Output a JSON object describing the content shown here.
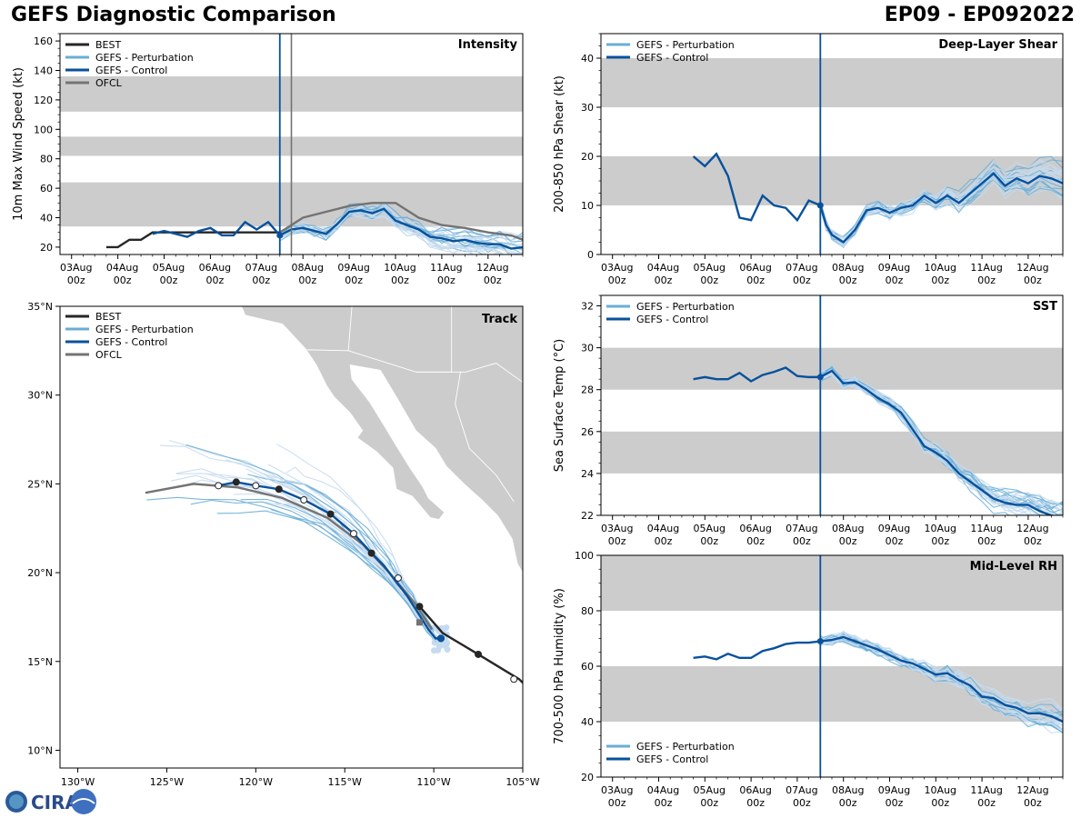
{
  "header": {
    "title_left": "GEFS Diagnostic Comparison",
    "title_right": "EP09 - EP092022"
  },
  "logo": {
    "text": "CIRA"
  },
  "colors": {
    "best": "#262626",
    "perturbation": "#6aaed6",
    "perturbation_light": "#c6dbef",
    "control": "#08519c",
    "ofcl": "#737373",
    "band": "#cccccc",
    "land": "#cccccc"
  },
  "time_axis": {
    "ticks": [
      {
        "t": 0,
        "l1": "03Aug",
        "l2": "00z"
      },
      {
        "t": 1,
        "l1": "04Aug",
        "l2": "00z"
      },
      {
        "t": 2,
        "l1": "05Aug",
        "l2": "00z"
      },
      {
        "t": 3,
        "l1": "06Aug",
        "l2": "00z"
      },
      {
        "t": 4,
        "l1": "07Aug",
        "l2": "00z"
      },
      {
        "t": 5,
        "l1": "08Aug",
        "l2": "00z"
      },
      {
        "t": 6,
        "l1": "09Aug",
        "l2": "00z"
      },
      {
        "t": 7,
        "l1": "10Aug",
        "l2": "00z"
      },
      {
        "t": 8,
        "l1": "11Aug",
        "l2": "00z"
      },
      {
        "t": 9,
        "l1": "12Aug",
        "l2": "00z"
      }
    ],
    "range": [
      -0.25,
      9.75
    ],
    "init_time": 4.5
  },
  "chart_data": [
    {
      "id": "intensity",
      "type": "line",
      "title": "Intensity",
      "ylabel": "10m Max Wind Speed (kt)",
      "ylim": [
        15,
        165
      ],
      "yticks": [
        20,
        40,
        60,
        80,
        100,
        120,
        140,
        160
      ],
      "bands": [
        [
          34,
          64
        ],
        [
          82,
          95
        ],
        [
          112,
          136
        ]
      ],
      "legend": [
        "BEST",
        "GEFS - Perturbation",
        "GEFS - Control",
        "OFCL"
      ],
      "ofcl_line_time": 4.75,
      "series": {
        "best": {
          "x": [
            0.75,
            1.0,
            1.25,
            1.5,
            1.75,
            2.0,
            2.5,
            3.0,
            3.5,
            4.0,
            4.25,
            4.5
          ],
          "y": [
            20,
            20,
            25,
            25,
            30,
            30,
            30,
            30,
            30,
            30,
            30,
            30
          ]
        },
        "control": {
          "x": [
            1.75,
            2.0,
            2.25,
            2.5,
            2.75,
            3.0,
            3.25,
            3.5,
            3.75,
            4.0,
            4.25,
            4.5,
            4.75,
            5.0,
            5.25,
            5.5,
            5.75,
            6.0,
            6.25,
            6.5,
            6.75,
            7.0,
            7.25,
            7.5,
            7.75,
            8.0,
            8.25,
            8.5,
            8.75,
            9.0,
            9.25,
            9.5,
            9.75
          ],
          "y": [
            29,
            31,
            29,
            27,
            31,
            33,
            28,
            28,
            37,
            32,
            37,
            28,
            32,
            33,
            31,
            29,
            36,
            44,
            45,
            43,
            46,
            38,
            35,
            32,
            27,
            26,
            24,
            25,
            23,
            22,
            22,
            19,
            20
          ]
        },
        "ofcl": {
          "x": [
            4.5,
            4.75,
            5.0,
            5.5,
            6.0,
            6.5,
            7.0,
            7.5,
            8.0,
            8.5,
            9.0,
            9.5,
            9.75
          ],
          "y": [
            30,
            35,
            40,
            44,
            48,
            50,
            50,
            40,
            35,
            33,
            30,
            28,
            25
          ]
        },
        "init_value": 28
      }
    },
    {
      "id": "shear",
      "type": "line",
      "title": "Deep-Layer Shear",
      "ylabel": "200-850 hPa Shear (kt)",
      "ylim": [
        0,
        45
      ],
      "yticks": [
        0,
        10,
        20,
        30,
        40
      ],
      "bands": [
        [
          10,
          20
        ],
        [
          30,
          40
        ]
      ],
      "legend": [
        "GEFS - Perturbation",
        "GEFS - Control"
      ],
      "series": {
        "control": {
          "x": [
            1.75,
            2.0,
            2.25,
            2.5,
            2.75,
            3.0,
            3.25,
            3.5,
            3.75,
            4.0,
            4.25,
            4.5,
            4.625,
            4.75,
            5.0,
            5.25,
            5.5,
            5.75,
            6.0,
            6.25,
            6.5,
            6.75,
            7.0,
            7.25,
            7.5,
            7.75,
            8.0,
            8.25,
            8.5,
            8.75,
            9.0,
            9.25,
            9.5,
            9.75
          ],
          "y": [
            20,
            18,
            20.5,
            16,
            7.5,
            7,
            12,
            10,
            9.5,
            7,
            11,
            10,
            6,
            4,
            2.5,
            5,
            9,
            9.5,
            8.5,
            9.5,
            10,
            12,
            10.5,
            12,
            10.5,
            12.5,
            14.5,
            16.5,
            14,
            15.5,
            14.5,
            16,
            15.5,
            14.5
          ]
        },
        "init_value": 10
      }
    },
    {
      "id": "sst",
      "type": "line",
      "title": "SST",
      "ylabel": "Sea Surface Temp (°C)",
      "ylim": [
        22,
        32.5
      ],
      "yticks": [
        22,
        24,
        26,
        28,
        30,
        32
      ],
      "bands": [
        [
          24,
          26
        ],
        [
          28,
          30
        ]
      ],
      "legend": [
        "GEFS - Perturbation",
        "GEFS - Control"
      ],
      "series": {
        "control": {
          "x": [
            1.75,
            2.0,
            2.25,
            2.5,
            2.75,
            3.0,
            3.25,
            3.5,
            3.75,
            4.0,
            4.25,
            4.5,
            4.75,
            5.0,
            5.25,
            5.5,
            5.75,
            6.0,
            6.25,
            6.5,
            6.75,
            7.0,
            7.25,
            7.5,
            7.75,
            8.0,
            8.25,
            8.5,
            8.75,
            9.0,
            9.25,
            9.5,
            9.75
          ],
          "y": [
            28.5,
            28.6,
            28.5,
            28.5,
            28.8,
            28.4,
            28.7,
            28.85,
            29.05,
            28.65,
            28.6,
            28.6,
            28.9,
            28.3,
            28.35,
            28.0,
            27.6,
            27.3,
            26.9,
            26.1,
            25.3,
            25.0,
            24.6,
            24.0,
            23.6,
            23.2,
            22.8,
            22.6,
            22.5,
            22.5,
            22.2,
            22.0,
            21.9
          ]
        },
        "init_value": 28.6
      }
    },
    {
      "id": "rh",
      "type": "line",
      "title": "Mid-Level RH",
      "ylabel": "700-500 hPa Humidity (%)",
      "ylim": [
        20,
        100
      ],
      "yticks": [
        20,
        40,
        60,
        80,
        100
      ],
      "bands": [
        [
          40,
          60
        ],
        [
          80,
          100
        ]
      ],
      "legend": [
        "GEFS - Perturbation",
        "GEFS - Control"
      ],
      "series": {
        "control": {
          "x": [
            1.75,
            2.0,
            2.25,
            2.5,
            2.75,
            3.0,
            3.25,
            3.5,
            3.75,
            4.0,
            4.25,
            4.5,
            4.75,
            5.0,
            5.25,
            5.5,
            5.75,
            6.0,
            6.25,
            6.5,
            6.75,
            7.0,
            7.25,
            7.5,
            7.75,
            8.0,
            8.25,
            8.5,
            8.75,
            9.0,
            9.25,
            9.5,
            9.75
          ],
          "y": [
            63,
            63.5,
            62.5,
            64.5,
            63,
            63,
            65.5,
            66.5,
            68,
            68.5,
            68.5,
            69,
            69.5,
            70.5,
            69,
            67.5,
            66,
            64,
            62,
            61,
            59,
            57,
            57.5,
            55,
            53,
            49,
            48.5,
            46,
            45,
            43,
            43,
            42,
            40
          ]
        },
        "init_value": 69
      }
    },
    {
      "id": "track",
      "type": "scatter",
      "title": "Track",
      "xlim": [
        -131,
        -105
      ],
      "ylim": [
        9,
        35
      ],
      "xticks": [
        {
          "v": -130,
          "l": "130°W"
        },
        {
          "v": -125,
          "l": "125°W"
        },
        {
          "v": -120,
          "l": "120°W"
        },
        {
          "v": -115,
          "l": "115°W"
        },
        {
          "v": -110,
          "l": "110°W"
        },
        {
          "v": -105,
          "l": "105°W"
        }
      ],
      "yticks": [
        {
          "v": 10,
          "l": "10°N"
        },
        {
          "v": 15,
          "l": "15°N"
        },
        {
          "v": 20,
          "l": "20°N"
        },
        {
          "v": 25,
          "l": "25°N"
        },
        {
          "v": 30,
          "l": "30°N"
        },
        {
          "v": 35,
          "l": "35°N"
        }
      ],
      "legend": [
        "BEST",
        "GEFS - Perturbation",
        "GEFS - Control",
        "OFCL"
      ],
      "best": {
        "lon": [
          -104.8,
          -105.2,
          -107.5,
          -109.5,
          -110.8
        ],
        "lat": [
          13.6,
          14.0,
          15.4,
          16.6,
          18.1
        ]
      },
      "control": {
        "lon": [
          -109.6,
          -109.9,
          -110.3,
          -110.8,
          -111.5,
          -112.2,
          -112.8,
          -113.5,
          -114.5,
          -115.8,
          -117.3,
          -118.7,
          -120.0,
          -121.1,
          -122.1
        ],
        "lat": [
          16.3,
          16.3,
          16.8,
          17.6,
          18.7,
          19.6,
          20.4,
          21.1,
          22.2,
          23.3,
          24.1,
          24.7,
          24.9,
          25.1,
          24.9
        ]
      },
      "ofcl": {
        "lon": [
          -110.1,
          -111.0,
          -112.5,
          -114.0,
          -116.0,
          -118.5,
          -121.0,
          -123.5,
          -126.2
        ],
        "lat": [
          16.8,
          18.2,
          20.0,
          21.6,
          23.1,
          24.2,
          24.8,
          25.0,
          24.5
        ]
      },
      "control_markers": {
        "lon": [
          -109.6,
          -110.8,
          -112.0,
          -113.5,
          -114.5,
          -115.8,
          -117.3,
          -118.7,
          -120.0,
          -121.1,
          -122.1
        ],
        "lat": [
          16.3,
          18.1,
          19.7,
          21.1,
          22.2,
          23.3,
          24.1,
          24.7,
          24.9,
          25.1,
          24.9
        ],
        "filled": [
          1,
          1,
          0,
          1,
          0,
          1,
          0,
          1,
          0,
          1,
          0
        ]
      },
      "best_markers": {
        "lon": [
          -105.5,
          -107.5
        ],
        "lat": [
          14.0,
          15.4
        ],
        "filled": [
          0,
          1
        ]
      },
      "ofcl_marker": {
        "lon": [
          -110.8
        ],
        "lat": [
          17.2
        ]
      }
    }
  ]
}
